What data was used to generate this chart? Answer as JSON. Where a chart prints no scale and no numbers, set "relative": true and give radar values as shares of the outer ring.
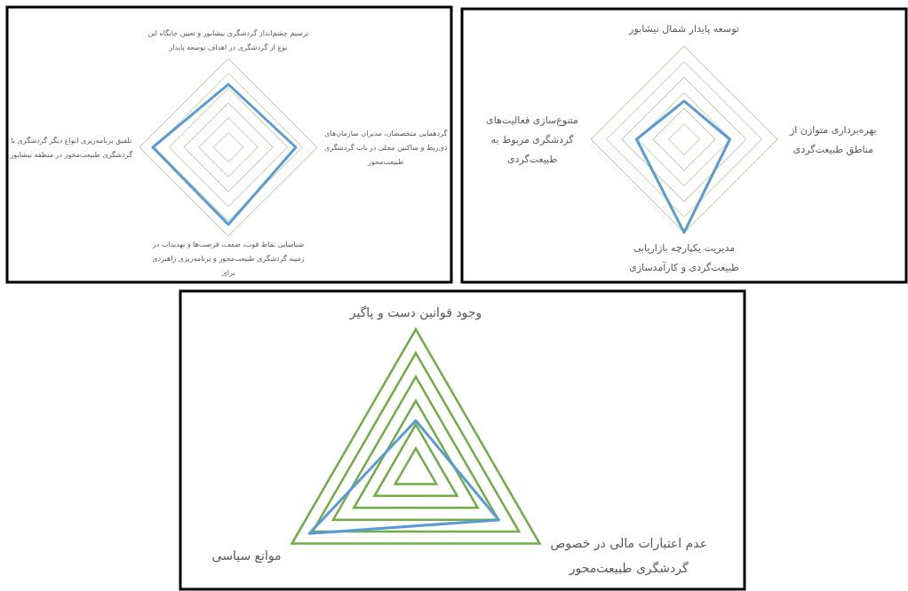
{
  "chart_data": [
    {
      "type": "radar",
      "relative": true,
      "grid": true,
      "categories": [
        "ترسیم چشم‌انداز گردشگری نیشابور و تعیین جایگاه این نوع از گردشگری در اهداف توسعه پایدار",
        "گردهمایی متخصصان، مدیران سازمان‌های ذی‌ربط و ساکنین محلی در باب گردشگری طبیعت‌محور",
        "شناسایی نقاط قوت، ضعف، فرصت‌ها و تهدیدات در زمینه گردشگری طبیعت‌محور و برنامه‌ریزی راهبردی برای",
        "تلفیق برنامه‌ریزی انواع دیگر گردشگری با گردشگری طبیعت‌محور در منطقه نیشابور"
      ],
      "series": [
        {
          "color": "#5b9bd5",
          "values": [
            0.71,
            0.76,
            0.87,
            0.85
          ]
        }
      ]
    },
    {
      "type": "radar",
      "relative": true,
      "grid": true,
      "categories": [
        "توسعه پایدار شمال نیشابور",
        "بهره‌برداری متوازن  از مناطق طبیعت‌گردی",
        "مدیریت یکپارچه بازاریابی طبیعت‌گردی و کارآمدسازی",
        "متنوع‌سازی فعالیت‌های گردشگری مربوط به طبیعت‌گردی"
      ],
      "series": [
        {
          "color": "#5b9bd5",
          "values": [
            0.41,
            0.49,
            1,
            0.51
          ]
        }
      ]
    },
    {
      "type": "radar",
      "relative": true,
      "grid": true,
      "categories": [
        "وجود  قوانین دست و پاگیر",
        "عدم اعتبارات مالی در خصوص گردشگری طبیعت‌محور",
        "موانع سیاسی"
      ],
      "series": [
        {
          "color": "#5b9bd5",
          "values": [
            0.36,
            0.67,
            0.86
          ]
        }
      ]
    }
  ]
}
